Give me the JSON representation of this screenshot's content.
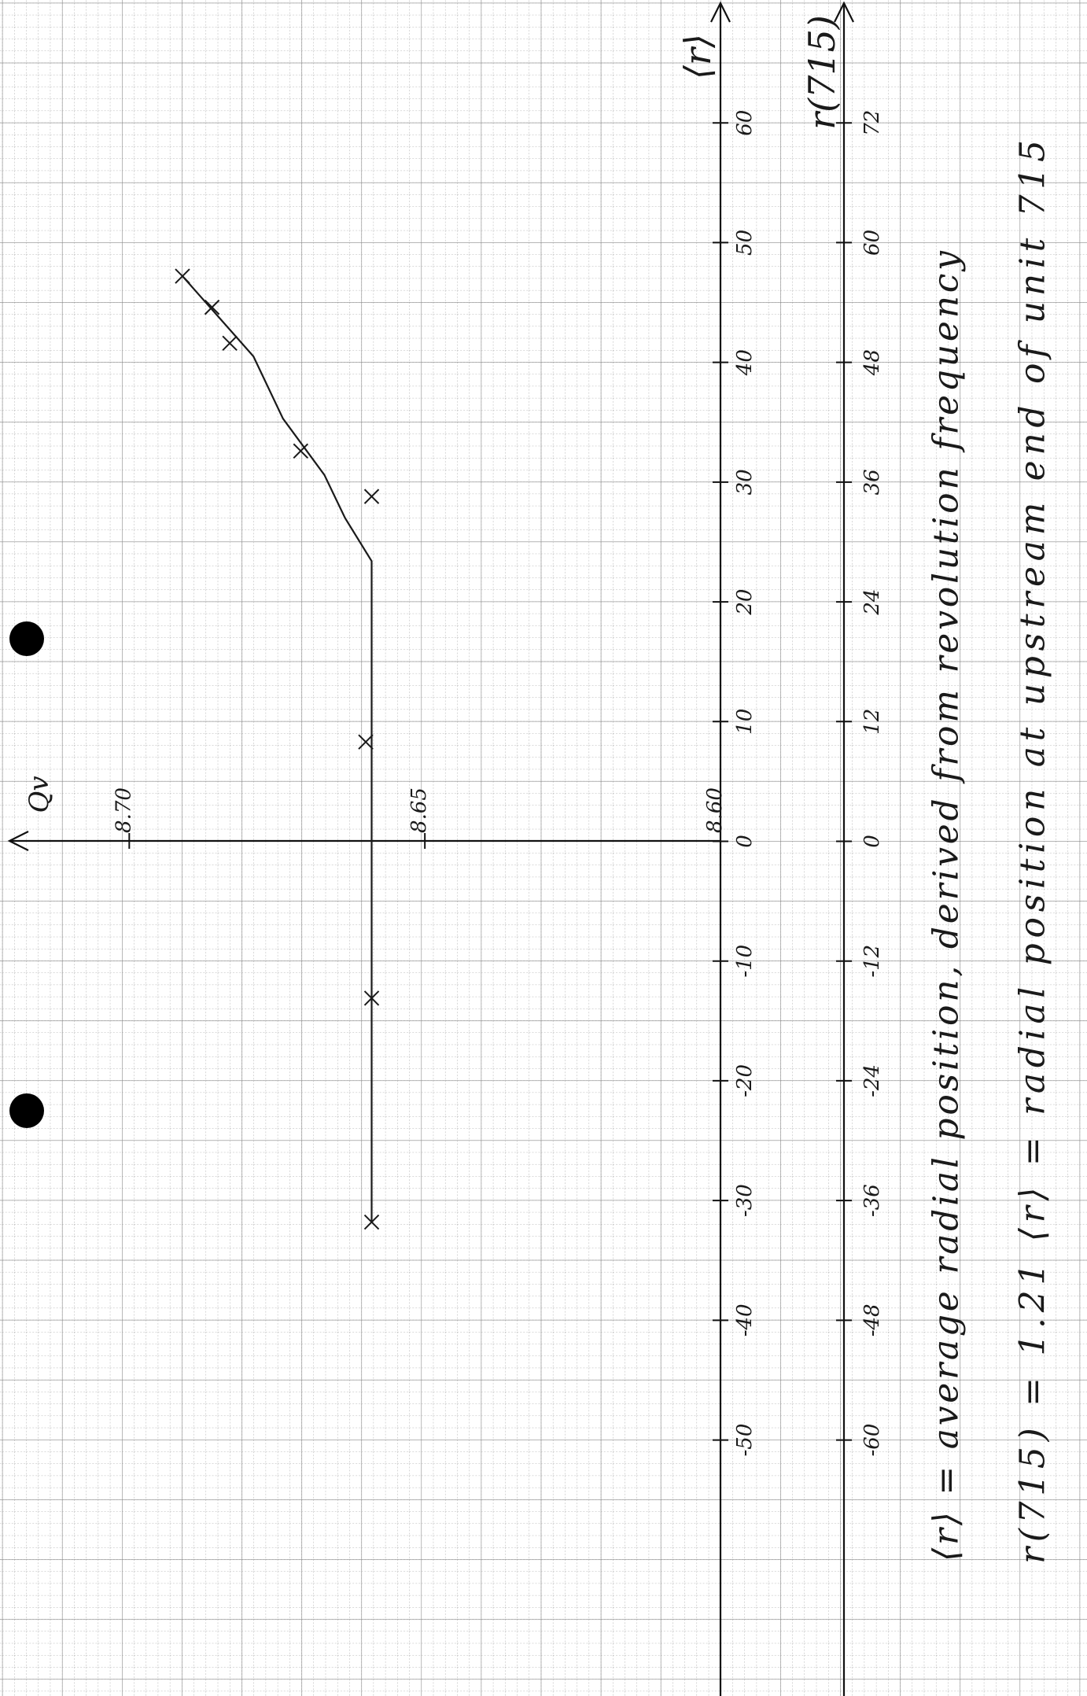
{
  "chart_data": {
    "type": "scatter",
    "x_label": "⟨r⟩",
    "x2_label": "r(715)",
    "y_label": "Qv",
    "notes": [
      "⟨r⟩ = average radial position, derived from revolution frequency",
      "r(715) = 1.21 ⟨r⟩ = radial position at upstream end of unit 715"
    ],
    "xlim": [
      -70,
      70
    ],
    "xticks": [
      -50,
      -40,
      -30,
      -20,
      -10,
      0,
      10,
      20,
      30,
      40,
      50,
      60
    ],
    "x2lim": [
      -84,
      84
    ],
    "x2ticks": [
      -60,
      -48,
      -36,
      -24,
      -12,
      0,
      12,
      24,
      36,
      48,
      60,
      72
    ],
    "ylim": [
      8.6,
      8.72
    ],
    "yticks": [
      {
        "value": 8.6,
        "label": "8.60"
      },
      8.65,
      {
        "value": 8.7,
        "label": "8.70"
      }
    ],
    "points": {
      "x": [
        -31.8,
        -13.1,
        8.3,
        28.8,
        32.6,
        41.6,
        44.6,
        47.2
      ],
      "y": [
        8.659,
        8.659,
        8.66,
        8.659,
        8.671,
        8.683,
        8.686,
        8.691
      ]
    },
    "curve": {
      "x": [
        -31.8,
        23.4,
        27,
        30.6,
        35.3,
        40.5,
        47.2
      ],
      "y": [
        8.659,
        8.659,
        8.6635,
        8.667,
        8.674,
        8.679,
        8.691
      ]
    },
    "color": "#1a1a1a"
  }
}
